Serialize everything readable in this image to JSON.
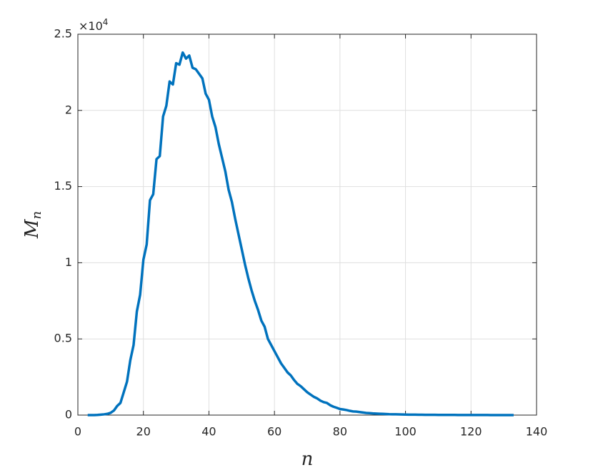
{
  "chart_data": {
    "type": "line",
    "xlabel": "n",
    "ylabel": {
      "main": "M",
      "sub": "n"
    },
    "y_multiplier": {
      "text": "×10",
      "exponent": "4"
    },
    "x": [
      3,
      4,
      5,
      6,
      7,
      8,
      9,
      10,
      11,
      12,
      13,
      14,
      15,
      16,
      17,
      18,
      19,
      20,
      21,
      22,
      23,
      24,
      25,
      26,
      27,
      28,
      29,
      30,
      31,
      32,
      33,
      34,
      35,
      36,
      37,
      38,
      39,
      40,
      41,
      42,
      43,
      44,
      45,
      46,
      47,
      48,
      49,
      50,
      51,
      52,
      53,
      54,
      55,
      56,
      57,
      58,
      59,
      60,
      61,
      62,
      63,
      64,
      65,
      66,
      67,
      68,
      69,
      70,
      71,
      72,
      73,
      74,
      75,
      76,
      77,
      78,
      79,
      80,
      81,
      82,
      83,
      84,
      85,
      86,
      87,
      88,
      89,
      90,
      91,
      92,
      93,
      94,
      95,
      96,
      97,
      98,
      99,
      100,
      101,
      102,
      103,
      104,
      105,
      106,
      107,
      108,
      109,
      110,
      111,
      112,
      113,
      114,
      115,
      116,
      117,
      118,
      119,
      120,
      121,
      122,
      123,
      124,
      125,
      126,
      127,
      128,
      129,
      130,
      131,
      132,
      133
    ],
    "series": [
      {
        "name": "M_n",
        "color": "#0072bd",
        "values": [
          0,
          0,
          0,
          10,
          30,
          50,
          80,
          150,
          300,
          600,
          800,
          1500,
          2200,
          3600,
          4600,
          6800,
          7900,
          10200,
          11200,
          14100,
          14500,
          16800,
          17000,
          19600,
          20300,
          21900,
          21700,
          23100,
          23000,
          23800,
          23400,
          23600,
          22800,
          22700,
          22400,
          22100,
          21100,
          20700,
          19600,
          18900,
          17800,
          16900,
          16000,
          14800,
          14000,
          12900,
          11900,
          10900,
          9900,
          9000,
          8200,
          7500,
          6900,
          6200,
          5800,
          5000,
          4600,
          4200,
          3800,
          3400,
          3100,
          2800,
          2600,
          2300,
          2050,
          1900,
          1700,
          1500,
          1350,
          1200,
          1100,
          950,
          850,
          800,
          650,
          550,
          480,
          400,
          370,
          330,
          280,
          240,
          230,
          200,
          170,
          140,
          130,
          110,
          100,
          90,
          80,
          70,
          60,
          55,
          50,
          45,
          40,
          35,
          32,
          30,
          27,
          25,
          22,
          20,
          18,
          16,
          15,
          14,
          13,
          12,
          11,
          10,
          9,
          8,
          7,
          7,
          6,
          6,
          5,
          5,
          4,
          4,
          4,
          3,
          3,
          3,
          2,
          2,
          2,
          2,
          1
        ]
      }
    ],
    "xlim": [
      0,
      140
    ],
    "xticks": [
      0,
      20,
      40,
      60,
      80,
      100,
      120,
      140
    ],
    "ylim": [
      0,
      25000
    ],
    "yticks": [
      0,
      {
        "value": 5000,
        "label": "0.5"
      },
      {
        "value": 10000,
        "label": "1"
      },
      {
        "value": 15000,
        "label": "1.5"
      },
      {
        "value": 20000,
        "label": "2"
      },
      {
        "value": 25000,
        "label": "2.5"
      }
    ],
    "grid": true
  }
}
